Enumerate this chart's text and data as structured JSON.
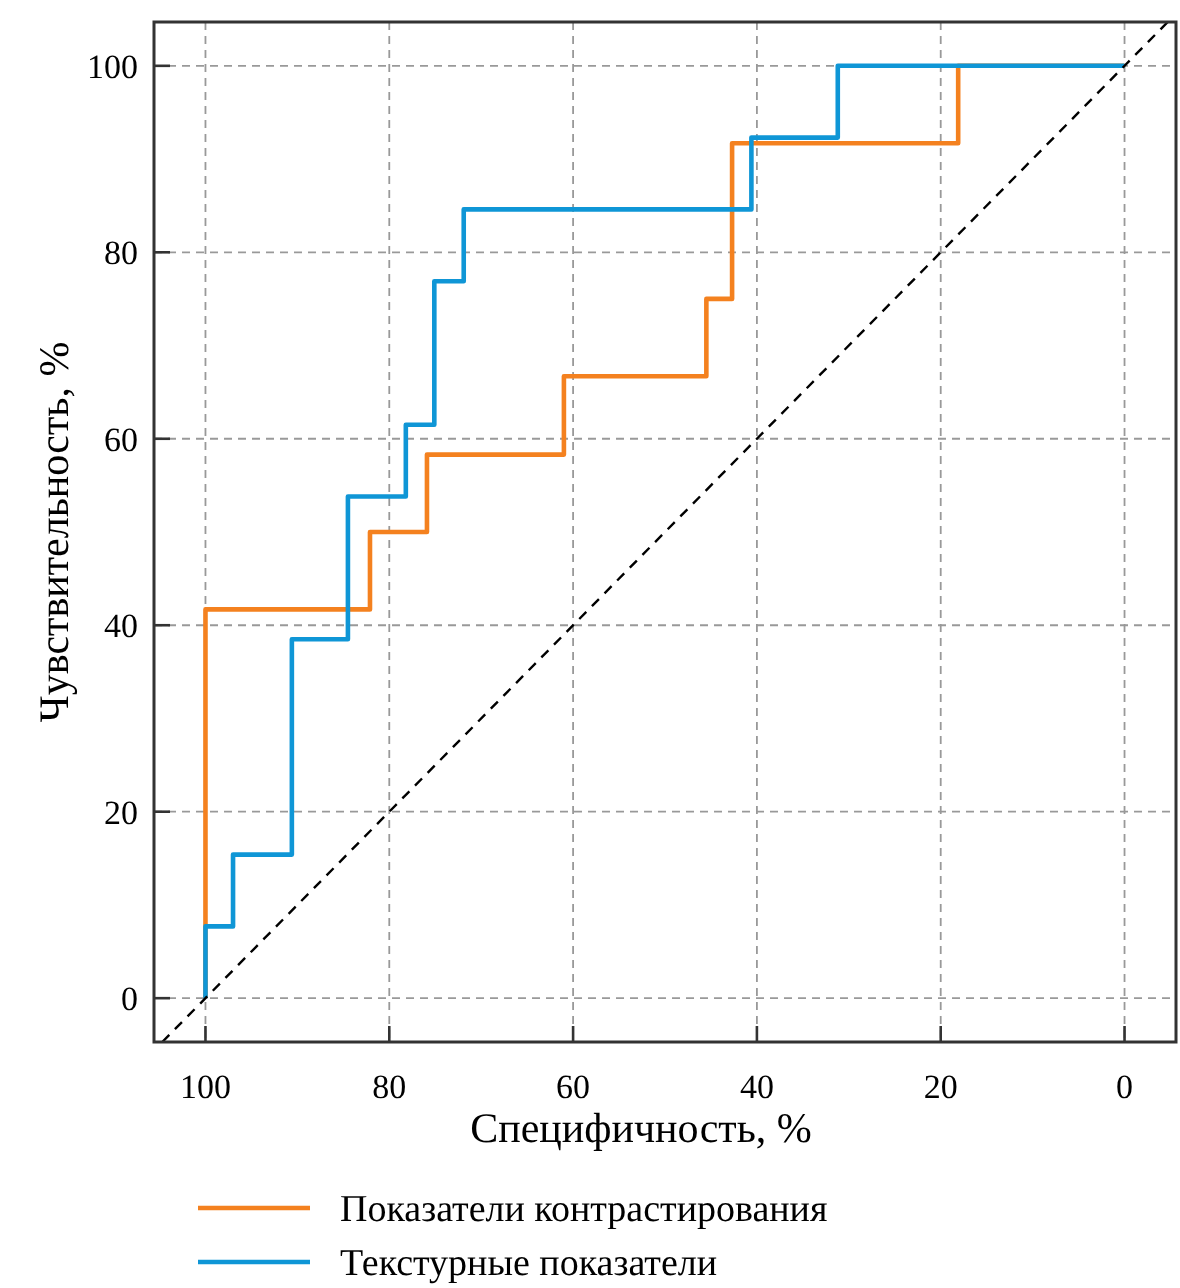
{
  "chart_data": {
    "type": "step",
    "xlabel": "Специфичность, %",
    "ylabel": "Чувствительность, %",
    "xlim": [
      105.6,
      -5.6
    ],
    "ylim": [
      -4.7,
      104.7
    ],
    "xticks": [
      100,
      80,
      60,
      40,
      20,
      0
    ],
    "yticks": [
      0,
      20,
      40,
      60,
      80,
      100
    ],
    "grid": true,
    "legend": "bottom",
    "marker": "none",
    "series": [
      {
        "name": "Показатели контрастирования",
        "color": "#f4811f",
        "x": [
          100,
          100,
          82.1,
          75.9,
          61,
          45.5,
          42.7,
          18.1,
          0
        ],
        "values": [
          0,
          41.7,
          50,
          58.3,
          66.7,
          75,
          91.7,
          100,
          100
        ]
      },
      {
        "name": "Текстурные показатели",
        "color": "#0f96d6",
        "x": [
          100,
          100,
          97,
          90.6,
          84.5,
          78.2,
          75.1,
          71.9,
          40.6,
          31.2,
          0
        ],
        "values": [
          0,
          7.7,
          15.4,
          38.5,
          53.8,
          61.5,
          76.9,
          84.6,
          92.3,
          100,
          100
        ]
      },
      {
        "type": "line",
        "color": "#000000",
        "line_style": "dashed",
        "x": [
          104.7,
          -4.7
        ],
        "values": [
          -4.7,
          104.7
        ]
      }
    ]
  }
}
